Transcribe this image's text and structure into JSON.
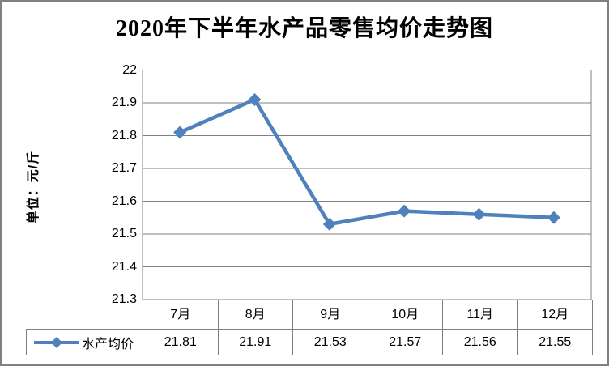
{
  "title": "2020年下半年水产品零售均价走势图",
  "y_axis": {
    "title": "单位：元/斤",
    "tick_labels": [
      "22",
      "21.9",
      "21.8",
      "21.7",
      "21.6",
      "21.5",
      "21.4",
      "21.3"
    ]
  },
  "legend": {
    "label": "水产均价"
  },
  "chart_data": {
    "type": "line",
    "categories": [
      "7月",
      "8月",
      "9月",
      "10月",
      "11月",
      "12月"
    ],
    "series": [
      {
        "name": "水产均价",
        "values": [
          21.81,
          21.91,
          21.53,
          21.57,
          21.56,
          21.55
        ]
      }
    ],
    "title": "2020年下半年水产品零售均价走势图",
    "xlabel": "",
    "ylabel": "单位：元/斤",
    "ylim": [
      21.3,
      22
    ],
    "ytick_step": 0.1,
    "grid": "horizontal",
    "legend_position": "bottom-left-of-data-table",
    "data_table_shown": true,
    "marker": "diamond"
  },
  "table_values_display": [
    "21.81",
    "21.91",
    "21.53",
    "21.57",
    "21.56",
    "21.55"
  ],
  "colors": {
    "series": "#4F81BD",
    "grid": "#808080",
    "table_border": "#808080",
    "frame_border": "#808080",
    "text": "#000000",
    "background": "#FFFFFF"
  }
}
